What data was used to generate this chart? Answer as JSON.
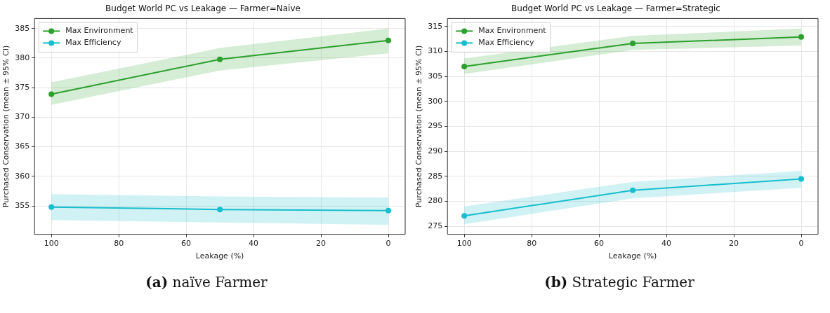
{
  "chart_data": [
    {
      "type": "line",
      "title": "Budget World PC vs Leakage — Farmer=Naive",
      "xlabel": "Leakage (%)",
      "ylabel": "Purchased Conservation (mean ± 95% CI)",
      "x": [
        100,
        50,
        0
      ],
      "xlim": [
        105,
        -5
      ],
      "xticks": [
        100,
        80,
        60,
        40,
        20,
        0
      ],
      "ylim": [
        350.2,
        386.7
      ],
      "yticks": [
        355,
        360,
        365,
        370,
        375,
        380,
        385
      ],
      "grid": true,
      "legend": "top left",
      "marker": "circle",
      "line_style": "solid",
      "annotations": [
        "(a) naïve Farmer"
      ],
      "series": [
        {
          "name": "Max Environment",
          "color": "#2ca02c",
          "values": [
            373.9,
            379.8,
            383.0
          ],
          "lower": [
            372.1,
            377.9,
            380.8
          ],
          "upper": [
            375.9,
            381.7,
            385.0
          ]
        },
        {
          "name": "Max Efficiency",
          "color": "#17becf",
          "values": [
            354.8,
            354.4,
            354.2
          ],
          "lower": [
            352.6,
            352.2,
            351.8
          ],
          "upper": [
            357.0,
            356.6,
            356.4
          ]
        }
      ]
    },
    {
      "type": "line",
      "title": "Budget World PC vs Leakage — Farmer=Strategic",
      "xlabel": "Leakage (%)",
      "ylabel": "Purchased Conservation (mean ± 95% CI)",
      "x": [
        100,
        50,
        0
      ],
      "xlim": [
        105,
        -5
      ],
      "xticks": [
        100,
        80,
        60,
        40,
        20,
        0
      ],
      "ylim": [
        273.4,
        316.6
      ],
      "yticks": [
        275,
        280,
        285,
        290,
        295,
        300,
        305,
        310,
        315
      ],
      "grid": true,
      "legend": "top left",
      "marker": "circle",
      "line_style": "solid",
      "annotations": [
        "(b) Strategic Farmer"
      ],
      "series": [
        {
          "name": "Max Environment",
          "color": "#2ca02c",
          "values": [
            307.0,
            311.6,
            312.9
          ],
          "lower": [
            305.5,
            310.3,
            311.2
          ],
          "upper": [
            308.6,
            313.1,
            314.6
          ]
        },
        {
          "name": "Max Efficiency",
          "color": "#17becf",
          "values": [
            277.1,
            282.2,
            284.5
          ],
          "lower": [
            275.4,
            280.6,
            282.7
          ],
          "upper": [
            279.0,
            283.9,
            286.1
          ]
        }
      ]
    }
  ]
}
